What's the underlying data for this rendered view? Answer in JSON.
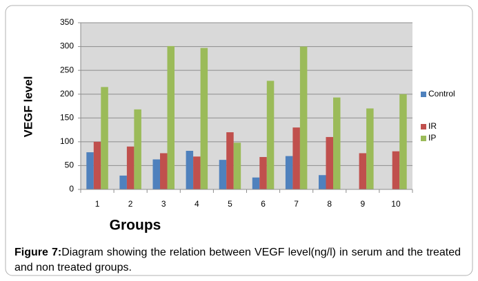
{
  "chart_data": {
    "type": "bar",
    "x_label": "Groups",
    "y_label": "VEGF level",
    "categories": [
      "1",
      "2",
      "3",
      "4",
      "5",
      "6",
      "7",
      "8",
      "9",
      "10"
    ],
    "series": [
      {
        "name": "Control",
        "color": "#4f81bd",
        "values": [
          78,
          29,
          63,
          81,
          62,
          25,
          70,
          30,
          null,
          null
        ]
      },
      {
        "name": "IR",
        "color": "#c0504d",
        "values": [
          100,
          90,
          76,
          69,
          120,
          68,
          130,
          110,
          76,
          80
        ]
      },
      {
        "name": "IP",
        "color": "#9bbb59",
        "values": [
          215,
          168,
          301,
          297,
          98,
          228,
          300,
          193,
          170,
          200
        ]
      }
    ],
    "ylim": [
      0,
      350
    ],
    "yticks": [
      0,
      50,
      100,
      150,
      200,
      250,
      300,
      350
    ],
    "grid": true,
    "legend": "right"
  },
  "caption": {
    "label": "Figure 7:",
    "text": "Diagram showing the relation between VEGF level(ng/l) in serum and the treated and non treated groups."
  }
}
